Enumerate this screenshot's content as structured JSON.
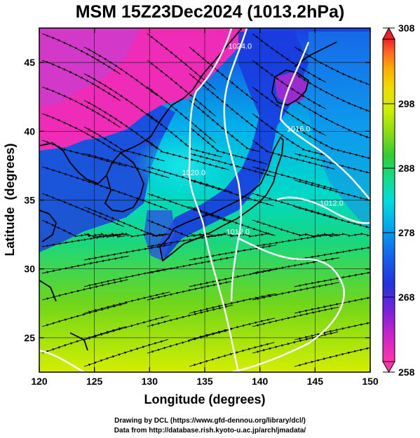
{
  "title": "MSM 15Z23Dec2024 (1013.2hPa)",
  "axes": {
    "xlabel": "Longitude (degrees)",
    "ylabel": "Latitude  (degrees)",
    "x_ticks": [
      "120",
      "125",
      "130",
      "135",
      "140",
      "145",
      "150"
    ],
    "y_ticks": [
      "25",
      "30",
      "35",
      "40",
      "45"
    ],
    "xlim": [
      120,
      150
    ],
    "ylim": [
      22.5,
      47.5
    ],
    "grid": true
  },
  "colorbar": {
    "ticks": [
      "308",
      "298",
      "288",
      "278",
      "268",
      "258"
    ],
    "range": [
      258,
      308
    ],
    "colors": [
      "#ff33aa",
      "#cc22cc",
      "#7722dd",
      "#2233dd",
      "#1166ee",
      "#00aaee",
      "#00dddd",
      "#11dd88",
      "#33cc33",
      "#88dd11",
      "#ccee00",
      "#eedd00",
      "#ffaa00",
      "#ff6622",
      "#ee2222"
    ]
  },
  "isobars": [
    {
      "label": "1024.0",
      "lon": 138.2,
      "lat": 46.0
    },
    {
      "label": "1020.0",
      "lon": 134.0,
      "lat": 36.8
    },
    {
      "label": "1016.0",
      "lon": 143.5,
      "lat": 40.0
    },
    {
      "label": "1012.0",
      "lon": 146.5,
      "lat": 34.6
    },
    {
      "label": "1012.0",
      "lon": 138.0,
      "lat": 32.5
    }
  ],
  "credits": {
    "line1": "Drawing by DCL (https://www.gfd-dennou.org/library/dcl/)",
    "line2": "Data from http://database.rish.kyoto-u.ac.jp/arch/jmadata/"
  }
}
